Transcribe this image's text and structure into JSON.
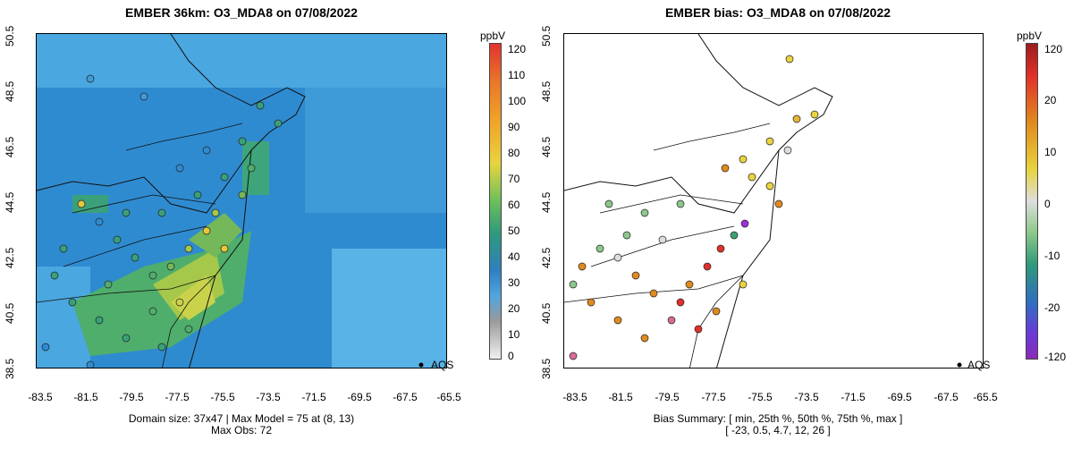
{
  "left_panel": {
    "title": "EMBER 36km: O3_MDA8 on 07/08/2022",
    "summary_line1": "Domain size: 37x47 | Max Model = 75 at (8, 13)",
    "summary_line2": "Max Obs: 72",
    "colorbar": {
      "unit": "ppbV",
      "ticks": [
        "120",
        "110",
        "100",
        "90",
        "80",
        "70",
        "60",
        "50",
        "40",
        "30",
        "20",
        "10",
        "0"
      ]
    },
    "legend": "AQS"
  },
  "right_panel": {
    "title": "EMBER bias: O3_MDA8 on 07/08/2022",
    "summary_line1": "Bias Summary: [ min, 25th %, 50th %, 75th %, max ]",
    "summary_line2": "[ -23,   0.5,   4.7,   12,   26 ]",
    "colorbar": {
      "unit": "ppbV",
      "ticks": [
        "120",
        "20",
        "10",
        "0",
        "-10",
        "-20",
        "-120"
      ]
    },
    "legend": "AQS"
  },
  "axes": {
    "lon_ticks": [
      "-83.5",
      "-81.5",
      "-79.5",
      "-77.5",
      "-75.5",
      "-73.5",
      "-71.5",
      "-69.5",
      "-67.5",
      "-65.5"
    ],
    "lat_ticks": [
      "50.5",
      "48.5",
      "46.5",
      "44.5",
      "42.5",
      "40.5",
      "38.5"
    ]
  },
  "colors": {
    "model_low": "#3a95d6",
    "model_mid": "#2a7fc4",
    "model_high": "#5cb85c",
    "bias_pos": "#e08a1e",
    "bias_neg": "#3aa370",
    "bias_zero": "#dddddd"
  },
  "icons": {
    "station_marker": "circle-icon"
  }
}
